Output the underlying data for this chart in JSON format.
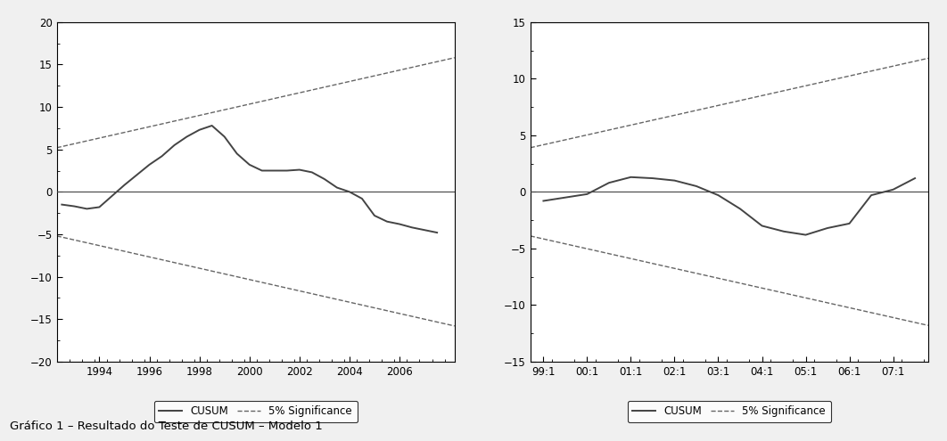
{
  "chart1": {
    "ylim": [
      -20,
      20
    ],
    "yticks": [
      -20,
      -15,
      -10,
      -5,
      0,
      5,
      10,
      15,
      20
    ],
    "x_labels": [
      "1994",
      "1996",
      "1998",
      "2000",
      "2002",
      "2004",
      "2006"
    ],
    "x_tick_positions": [
      1994,
      1996,
      1998,
      2000,
      2002,
      2004,
      2006
    ],
    "x_start": 1992.3,
    "x_end": 2008.2,
    "sig_upper_start": 5.2,
    "sig_upper_end": 15.8,
    "sig_lower_start": -5.2,
    "sig_lower_end": -15.8,
    "cusum_x": [
      1992.5,
      1993.0,
      1993.5,
      1994.0,
      1994.5,
      1995.0,
      1995.5,
      1996.0,
      1996.5,
      1997.0,
      1997.5,
      1998.0,
      1998.5,
      1999.0,
      1999.5,
      2000.0,
      2000.5,
      2001.0,
      2001.5,
      2002.0,
      2002.5,
      2003.0,
      2003.5,
      2004.0,
      2004.5,
      2005.0,
      2005.5,
      2006.0,
      2006.5,
      2007.0,
      2007.5
    ],
    "cusum_y": [
      -1.5,
      -1.7,
      -2.0,
      -1.8,
      -0.5,
      0.8,
      2.0,
      3.2,
      4.2,
      5.5,
      6.5,
      7.3,
      7.8,
      6.5,
      4.5,
      3.2,
      2.5,
      2.5,
      2.5,
      2.6,
      2.3,
      1.5,
      0.5,
      0.0,
      -0.8,
      -2.8,
      -3.5,
      -3.8,
      -4.2,
      -4.5,
      -4.8
    ]
  },
  "chart2": {
    "ylim": [
      -15,
      15
    ],
    "yticks": [
      -15,
      -10,
      -5,
      0,
      5,
      10,
      15
    ],
    "x_labels": [
      "99:1",
      "00:1",
      "01:1",
      "02:1",
      "03:1",
      "04:1",
      "05:1",
      "06:1",
      "07:1"
    ],
    "x_tick_positions": [
      0,
      1,
      2,
      3,
      4,
      5,
      6,
      7,
      8
    ],
    "x_start": -0.3,
    "x_end": 8.8,
    "sig_upper_start": 3.9,
    "sig_upper_end": 11.8,
    "sig_lower_start": -3.9,
    "sig_lower_end": -11.8,
    "cusum_x": [
      0.0,
      0.5,
      1.0,
      1.5,
      2.0,
      2.5,
      3.0,
      3.5,
      4.0,
      4.5,
      5.0,
      5.5,
      6.0,
      6.5,
      7.0,
      7.5,
      8.0,
      8.5
    ],
    "cusum_y": [
      -0.8,
      -0.5,
      -0.2,
      0.8,
      1.3,
      1.2,
      1.0,
      0.5,
      -0.3,
      -1.5,
      -3.0,
      -3.5,
      -3.8,
      -3.2,
      -2.8,
      -0.3,
      0.2,
      1.2
    ]
  },
  "line_color": "#444444",
  "sig_color": "#666666",
  "background_color": "#f0f0f0",
  "plot_bg_color": "#ffffff",
  "legend_label_cusum": "CUSUM",
  "legend_label_sig": "5% Significance",
  "caption": "Gráfico 1 – Resultado do Teste de CUSUM – Modelo 1"
}
